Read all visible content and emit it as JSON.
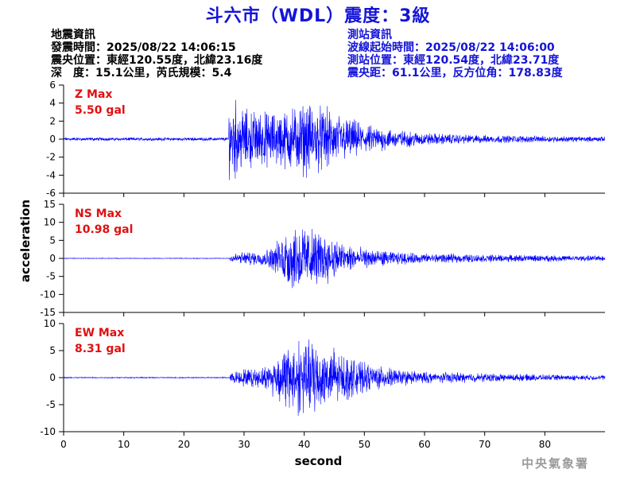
{
  "title": "斗六市（WDL）震度：3級",
  "quake_info": {
    "heading": "地震資訊",
    "origin_time": "發震時間：2025/08/22 14:06:15",
    "epicenter": "震央位置：東經120.55度，北緯23.16度",
    "depth_magnitude": "深　度：15.1公里，芮氏規模：5.4"
  },
  "station_info": {
    "heading": "測站資訊",
    "wave_start": "波線起始時間：2025/08/22 14:06:00",
    "station_location": "測站位置：東經120.54度，北緯23.71度",
    "distance_azimuth": "震央距：61.1公里，反方位角：178.83度"
  },
  "watermark": "中央氣象署",
  "colors": {
    "title": "#1414d8",
    "trace": "#0000ff",
    "max_label": "#e01010",
    "axis": "#000000"
  },
  "chart_data": {
    "type": "line",
    "xlabel": "second",
    "ylabel": "acceleration",
    "xlim": [
      0,
      90
    ],
    "xticks": [
      0,
      10,
      20,
      30,
      40,
      50,
      60,
      70,
      80
    ],
    "panels": [
      {
        "name": "Z",
        "max_label": "Z Max",
        "max_value": "5.50 gal",
        "ylim": [
          -6,
          6
        ],
        "yticks": [
          -6,
          -4,
          -2,
          0,
          2,
          4,
          6
        ],
        "envelope": {
          "t": [
            0,
            27.4,
            27.5,
            28,
            30,
            32,
            35,
            38,
            40,
            42,
            44,
            46,
            48,
            50,
            52,
            55,
            60,
            65,
            70,
            80,
            90
          ],
          "amp": [
            0.2,
            0.2,
            4.5,
            5.5,
            3.8,
            3.6,
            3.4,
            4.0,
            4.6,
            4.2,
            3.8,
            3.0,
            2.5,
            1.8,
            1.6,
            1.2,
            0.8,
            0.6,
            0.5,
            0.4,
            0.3
          ]
        }
      },
      {
        "name": "NS",
        "max_label": "NS Max",
        "max_value": "10.98 gal",
        "ylim": [
          -15,
          15
        ],
        "yticks": [
          -15,
          -10,
          -5,
          0,
          5,
          10,
          15
        ],
        "envelope": {
          "t": [
            0,
            27.5,
            28,
            30,
            33,
            35,
            37,
            39,
            41,
            43,
            45,
            47,
            50,
            55,
            60,
            70,
            80,
            90
          ],
          "amp": [
            0.1,
            0.1,
            1.5,
            2.0,
            2.2,
            4.0,
            9.0,
            11.0,
            9.5,
            8.0,
            6.5,
            4.5,
            3.0,
            2.0,
            1.5,
            1.2,
            1.0,
            0.8
          ]
        }
      },
      {
        "name": "EW",
        "max_label": "EW Max",
        "max_value": "8.31 gal",
        "ylim": [
          -10,
          10
        ],
        "yticks": [
          -10,
          -5,
          0,
          5,
          10
        ],
        "envelope": {
          "t": [
            0,
            27.5,
            28,
            30,
            33,
            35,
            37,
            39,
            41,
            42,
            43,
            45,
            47,
            50,
            55,
            60,
            70,
            80,
            90
          ],
          "amp": [
            0.1,
            0.1,
            1.2,
            1.8,
            2.0,
            4.0,
            6.5,
            8.0,
            7.5,
            8.3,
            7.0,
            6.0,
            4.5,
            3.0,
            1.8,
            1.2,
            0.9,
            0.6,
            0.5
          ]
        }
      }
    ]
  }
}
